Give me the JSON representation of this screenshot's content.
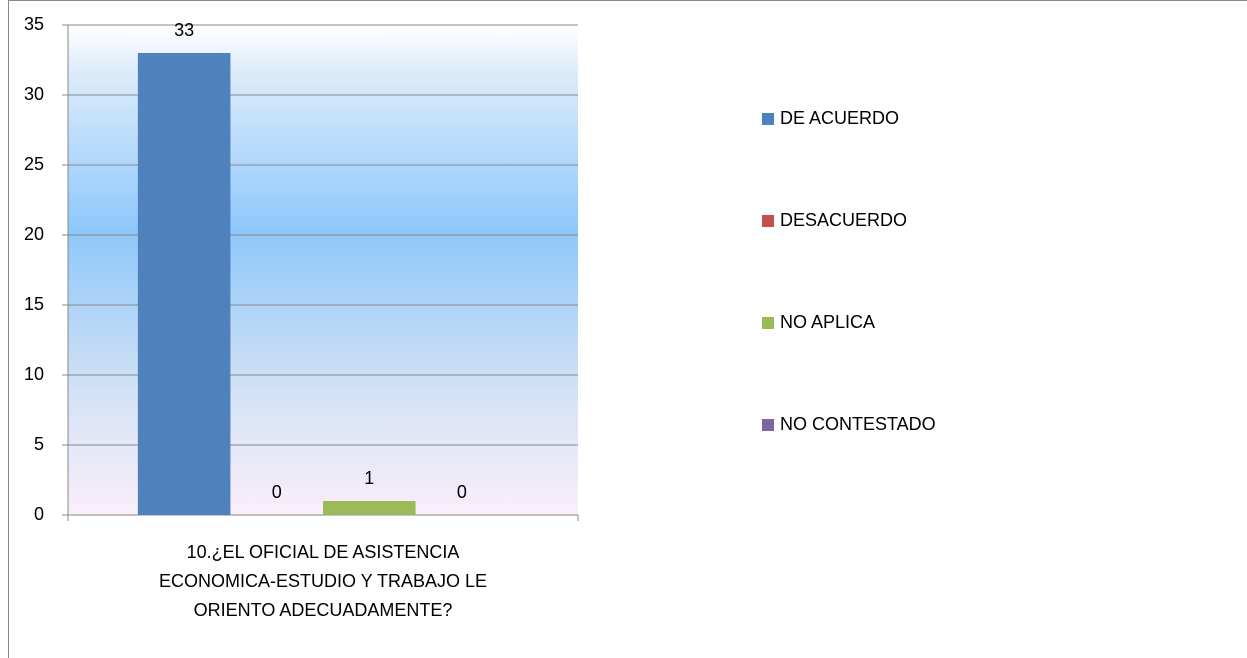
{
  "chart_data": {
    "type": "bar",
    "categories": [
      "10.¿EL OFICIAL DE ASISTENCIA ECONOMICA-ESTUDIO Y TRABAJO LE ORIENTO ADECUADAMENTE?"
    ],
    "series": [
      {
        "name": "DE ACUERDO",
        "color": "#4f81bd",
        "values": [
          33
        ]
      },
      {
        "name": "DESACUERDO",
        "color": "#c0504d",
        "values": [
          0
        ]
      },
      {
        "name": "NO APLICA",
        "color": "#9bbb59",
        "values": [
          1
        ]
      },
      {
        "name": "NO CONTESTADO",
        "color": "#8064a2",
        "values": [
          0
        ]
      }
    ],
    "ylim": [
      0,
      35
    ],
    "yticks": [
      0,
      5,
      10,
      15,
      20,
      25,
      30,
      35
    ],
    "grid": true,
    "legend": "right"
  }
}
